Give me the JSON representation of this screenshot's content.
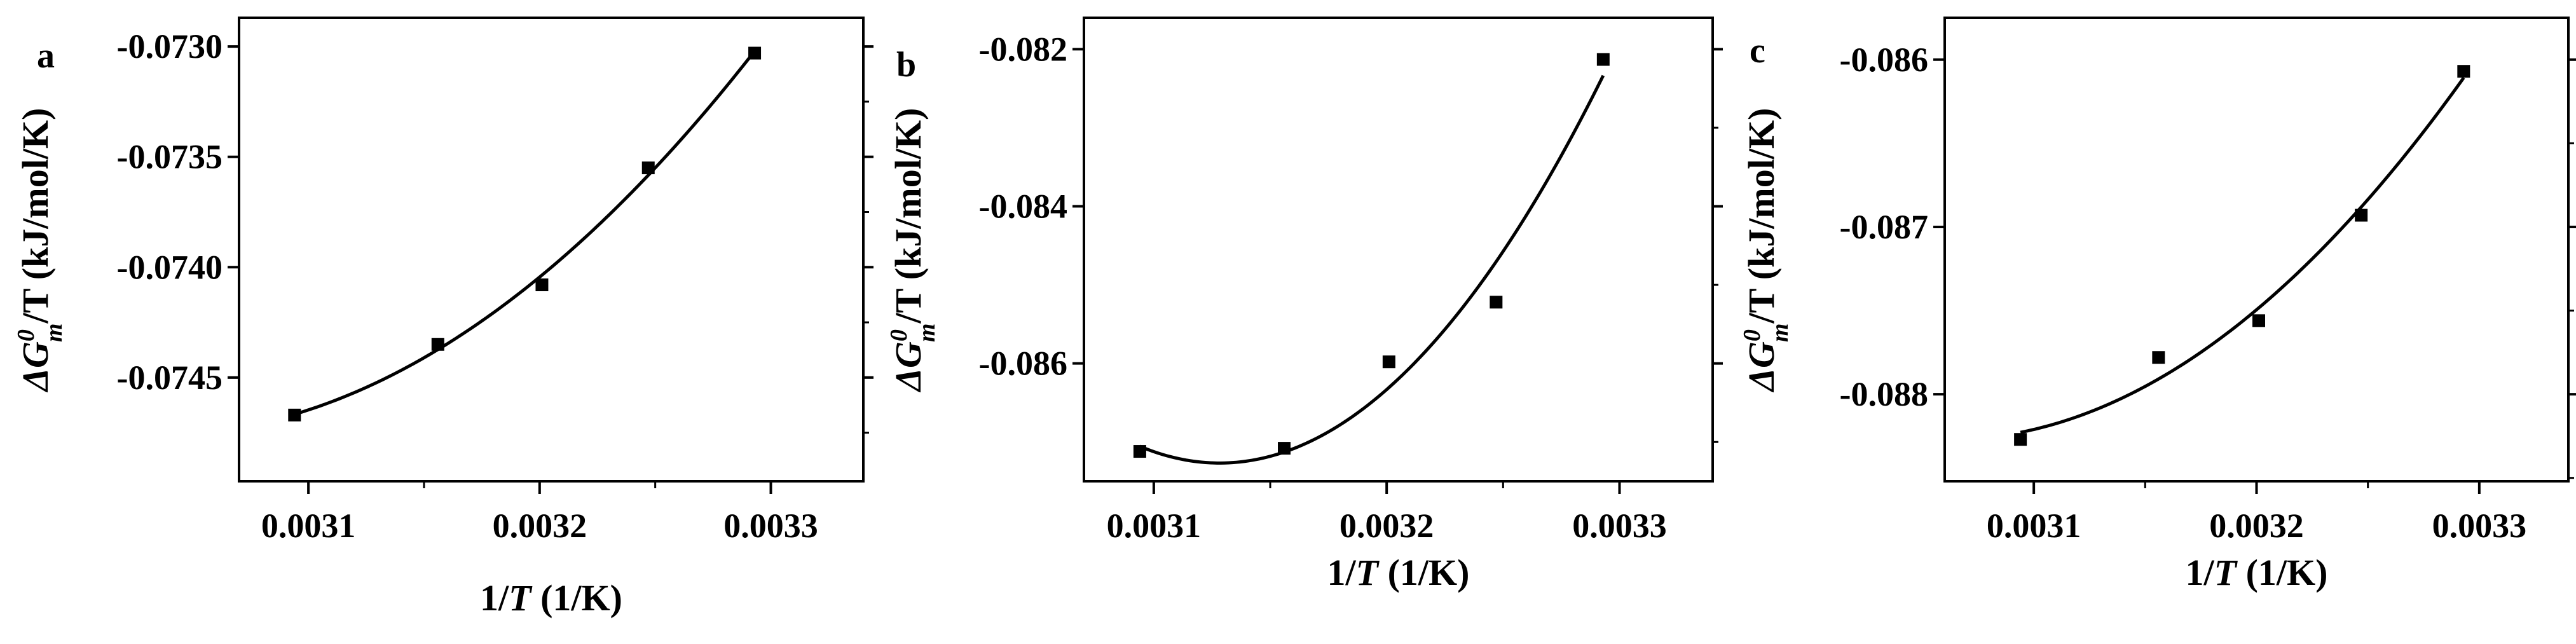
{
  "chart_data": [
    {
      "type": "scatter",
      "panel_label": "a",
      "xlabel": {
        "pre": "1/",
        "var": "T",
        "post": " (1/K)"
      },
      "ylabel": {
        "pre": "Δ",
        "var": "G",
        "sup": "0",
        "sub": "m",
        "post": "/T (kJ/mol/K)"
      },
      "xlim": [
        0.00307,
        0.00334
      ],
      "ylim": [
        -0.07497,
        -0.07287
      ],
      "xticks": [
        0.0031,
        0.0032,
        0.0033
      ],
      "xtick_labels": [
        "0.0031",
        "0.0032",
        "0.0033"
      ],
      "yticks": [
        -0.073,
        -0.0735,
        -0.074,
        -0.0745
      ],
      "ytick_labels": [
        "-0.0730",
        "-0.0735",
        "-0.0740",
        "-0.0745"
      ],
      "x": [
        0.003094,
        0.003156,
        0.003201,
        0.003247,
        0.003293
      ],
      "y": [
        -0.07467,
        -0.07435,
        -0.07408,
        -0.07355,
        -0.07303
      ],
      "fit": {
        "kind": "quadratic"
      },
      "grid": false,
      "legend": "none"
    },
    {
      "type": "scatter",
      "panel_label": "b",
      "xlabel": {
        "pre": "1/",
        "var": "T",
        "post": " (1/K)"
      },
      "ylabel": {
        "pre": "Δ",
        "var": "G",
        "sup": "0",
        "sub": "m",
        "post": "/T (kJ/mol/K)"
      },
      "xlim": [
        0.00307,
        0.00334
      ],
      "ylim": [
        -0.0875,
        -0.0816
      ],
      "xticks": [
        0.0031,
        0.0032,
        0.0033
      ],
      "xtick_labels": [
        "0.0031",
        "0.0032",
        "0.0033"
      ],
      "yticks": [
        -0.082,
        -0.084,
        -0.086
      ],
      "ytick_labels": [
        "-0.082",
        "-0.084",
        "-0.086"
      ],
      "x": [
        0.003094,
        0.003156,
        0.003201,
        0.003247,
        0.003293
      ],
      "y": [
        -0.08712,
        -0.08708,
        -0.08598,
        -0.08522,
        -0.08213
      ],
      "fit": {
        "kind": "quadratic"
      },
      "grid": false,
      "legend": "none"
    },
    {
      "type": "scatter",
      "panel_label": "c",
      "xlabel": {
        "pre": "1/",
        "var": "T",
        "post": " (1/K)"
      },
      "ylabel": {
        "pre": "Δ",
        "var": "G",
        "sup": "0",
        "sub": "m",
        "post": "/T (kJ/mol/K)"
      },
      "xlim": [
        0.00306,
        0.00334
      ],
      "ylim": [
        -0.08852,
        -0.08575
      ],
      "xticks": [
        0.0031,
        0.0032,
        0.0033
      ],
      "xtick_labels": [
        "0.0031",
        "0.0032",
        "0.0033"
      ],
      "yticks": [
        -0.086,
        -0.087,
        -0.088
      ],
      "ytick_labels": [
        "-0.086",
        "-0.087",
        "-0.088"
      ],
      "x": [
        0.003094,
        0.003156,
        0.003201,
        0.003247,
        0.003293
      ],
      "y": [
        -0.08827,
        -0.08778,
        -0.08756,
        -0.08693,
        -0.08607
      ],
      "fit": {
        "kind": "quadratic"
      },
      "grid": false,
      "legend": "none"
    }
  ]
}
